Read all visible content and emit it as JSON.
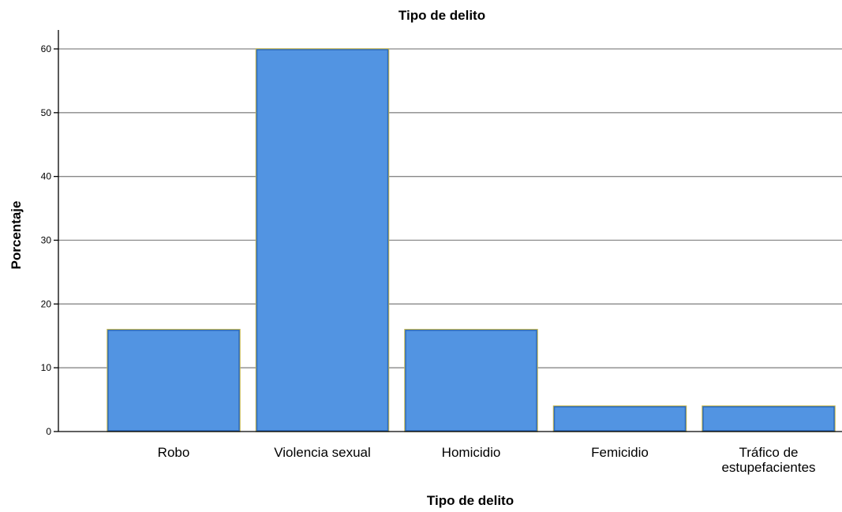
{
  "chart_data": {
    "type": "bar",
    "title": "Tipo de delito",
    "xlabel": "Tipo de delito",
    "ylabel": "Porcentaje",
    "categories": [
      "Robo",
      "Violencia sexual",
      "Homicidio",
      "Femicidio",
      "Tráfico de estupefacientes"
    ],
    "category_lines": [
      [
        "Robo"
      ],
      [
        "Violencia sexual"
      ],
      [
        "Homicidio"
      ],
      [
        "Femicidio"
      ],
      [
        "Tráfico de",
        "estupefacientes"
      ]
    ],
    "values": [
      16,
      60,
      16,
      4,
      4
    ],
    "ylim": [
      0,
      60
    ],
    "yticks": [
      0,
      10,
      20,
      30,
      40,
      50,
      60
    ],
    "grid": true,
    "bar_color": "#5294e2",
    "bar_edge_color": "#c9b84a",
    "grid_color": "#888888"
  }
}
